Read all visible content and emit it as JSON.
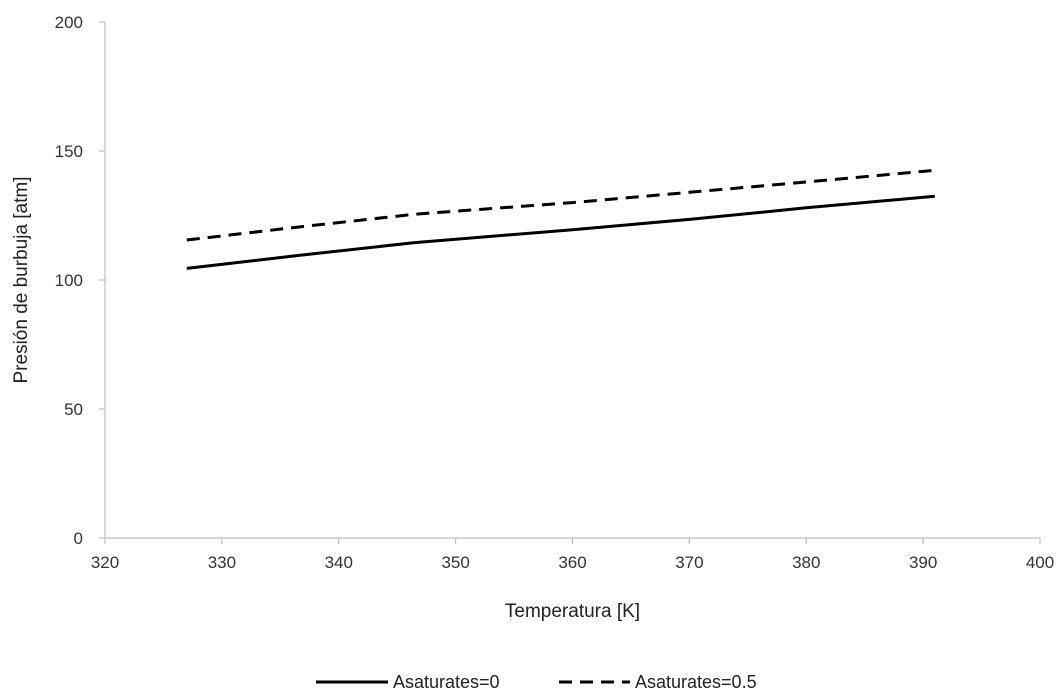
{
  "chart_data": {
    "type": "line",
    "title": "",
    "xlabel": "Temperatura [K]",
    "ylabel": "Presión de burbuja [atm]",
    "xlim": [
      320,
      400
    ],
    "ylim": [
      0,
      200
    ],
    "x_ticks": [
      320,
      330,
      340,
      350,
      360,
      370,
      380,
      390,
      400
    ],
    "y_ticks": [
      0,
      50,
      100,
      150,
      200
    ],
    "grid": false,
    "legend_position": "bottom",
    "series": [
      {
        "name": "Asaturates=0",
        "style": "solid",
        "color": "#000000",
        "x": [
          327,
          336.5,
          346.5,
          360,
          370,
          380,
          391
        ],
        "y": [
          104.5,
          109.5,
          114.5,
          119.5,
          123.5,
          128,
          132.5
        ]
      },
      {
        "name": "Asaturates=0.5",
        "style": "dashed",
        "color": "#000000",
        "x": [
          327,
          336.5,
          346.5,
          360,
          370,
          380,
          391
        ],
        "y": [
          115.5,
          120.5,
          125.5,
          130,
          134,
          138,
          142.5
        ]
      }
    ]
  }
}
